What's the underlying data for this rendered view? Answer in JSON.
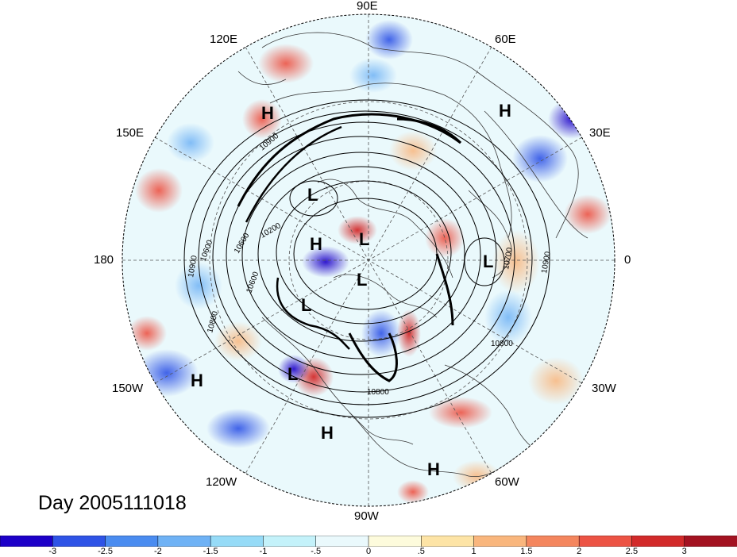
{
  "map": {
    "projection": "north-polar-stereographic",
    "longitude_labels": [
      {
        "id": "90E",
        "text": "90E"
      },
      {
        "id": "60E",
        "text": "60E"
      },
      {
        "id": "120E",
        "text": "120E"
      },
      {
        "id": "30E",
        "text": "30E"
      },
      {
        "id": "150E",
        "text": "150E"
      },
      {
        "id": "180",
        "text": "180"
      },
      {
        "id": "0",
        "text": "0"
      },
      {
        "id": "150W",
        "text": "150W"
      },
      {
        "id": "30W",
        "text": "30W"
      },
      {
        "id": "120W",
        "text": "120W"
      },
      {
        "id": "60W",
        "text": "60W"
      },
      {
        "id": "90W",
        "text": "90W"
      }
    ],
    "pressure_centers": [
      {
        "text": "H"
      },
      {
        "text": "H"
      },
      {
        "text": "L"
      },
      {
        "text": "H"
      },
      {
        "text": "L"
      },
      {
        "text": "L"
      },
      {
        "text": "L"
      },
      {
        "text": "L"
      },
      {
        "text": "L"
      },
      {
        "text": "H"
      },
      {
        "text": "H"
      },
      {
        "text": "H"
      }
    ],
    "contour_labels": [
      {
        "text": "10900"
      },
      {
        "text": "10200"
      },
      {
        "text": "10600"
      },
      {
        "text": "10900"
      },
      {
        "text": "10600"
      },
      {
        "text": "10800"
      },
      {
        "text": "10600"
      },
      {
        "text": "10700"
      },
      {
        "text": "10900"
      },
      {
        "text": "10800"
      },
      {
        "text": "10800"
      }
    ],
    "date_label": "Day 2005111018"
  },
  "colorbar": {
    "colors": [
      "#1c00c8",
      "#2e53e6",
      "#4a8cf0",
      "#6fb2f5",
      "#96dbf7",
      "#c4f2fa",
      "#eaf9fc",
      "#fdfbdc",
      "#fde4a6",
      "#f9b67d",
      "#f4865e",
      "#ec5344",
      "#d22a2a",
      "#a31221"
    ],
    "tick_labels": [
      "-3",
      "-2.5",
      "-2",
      "-1.5",
      "-1",
      "-.5",
      "0",
      ".5",
      "1",
      "1.5",
      "2",
      "2.5",
      "3"
    ]
  },
  "colors": {
    "land_outline": "#3a3a3a",
    "contour": "#000000",
    "grid": "#555555"
  }
}
